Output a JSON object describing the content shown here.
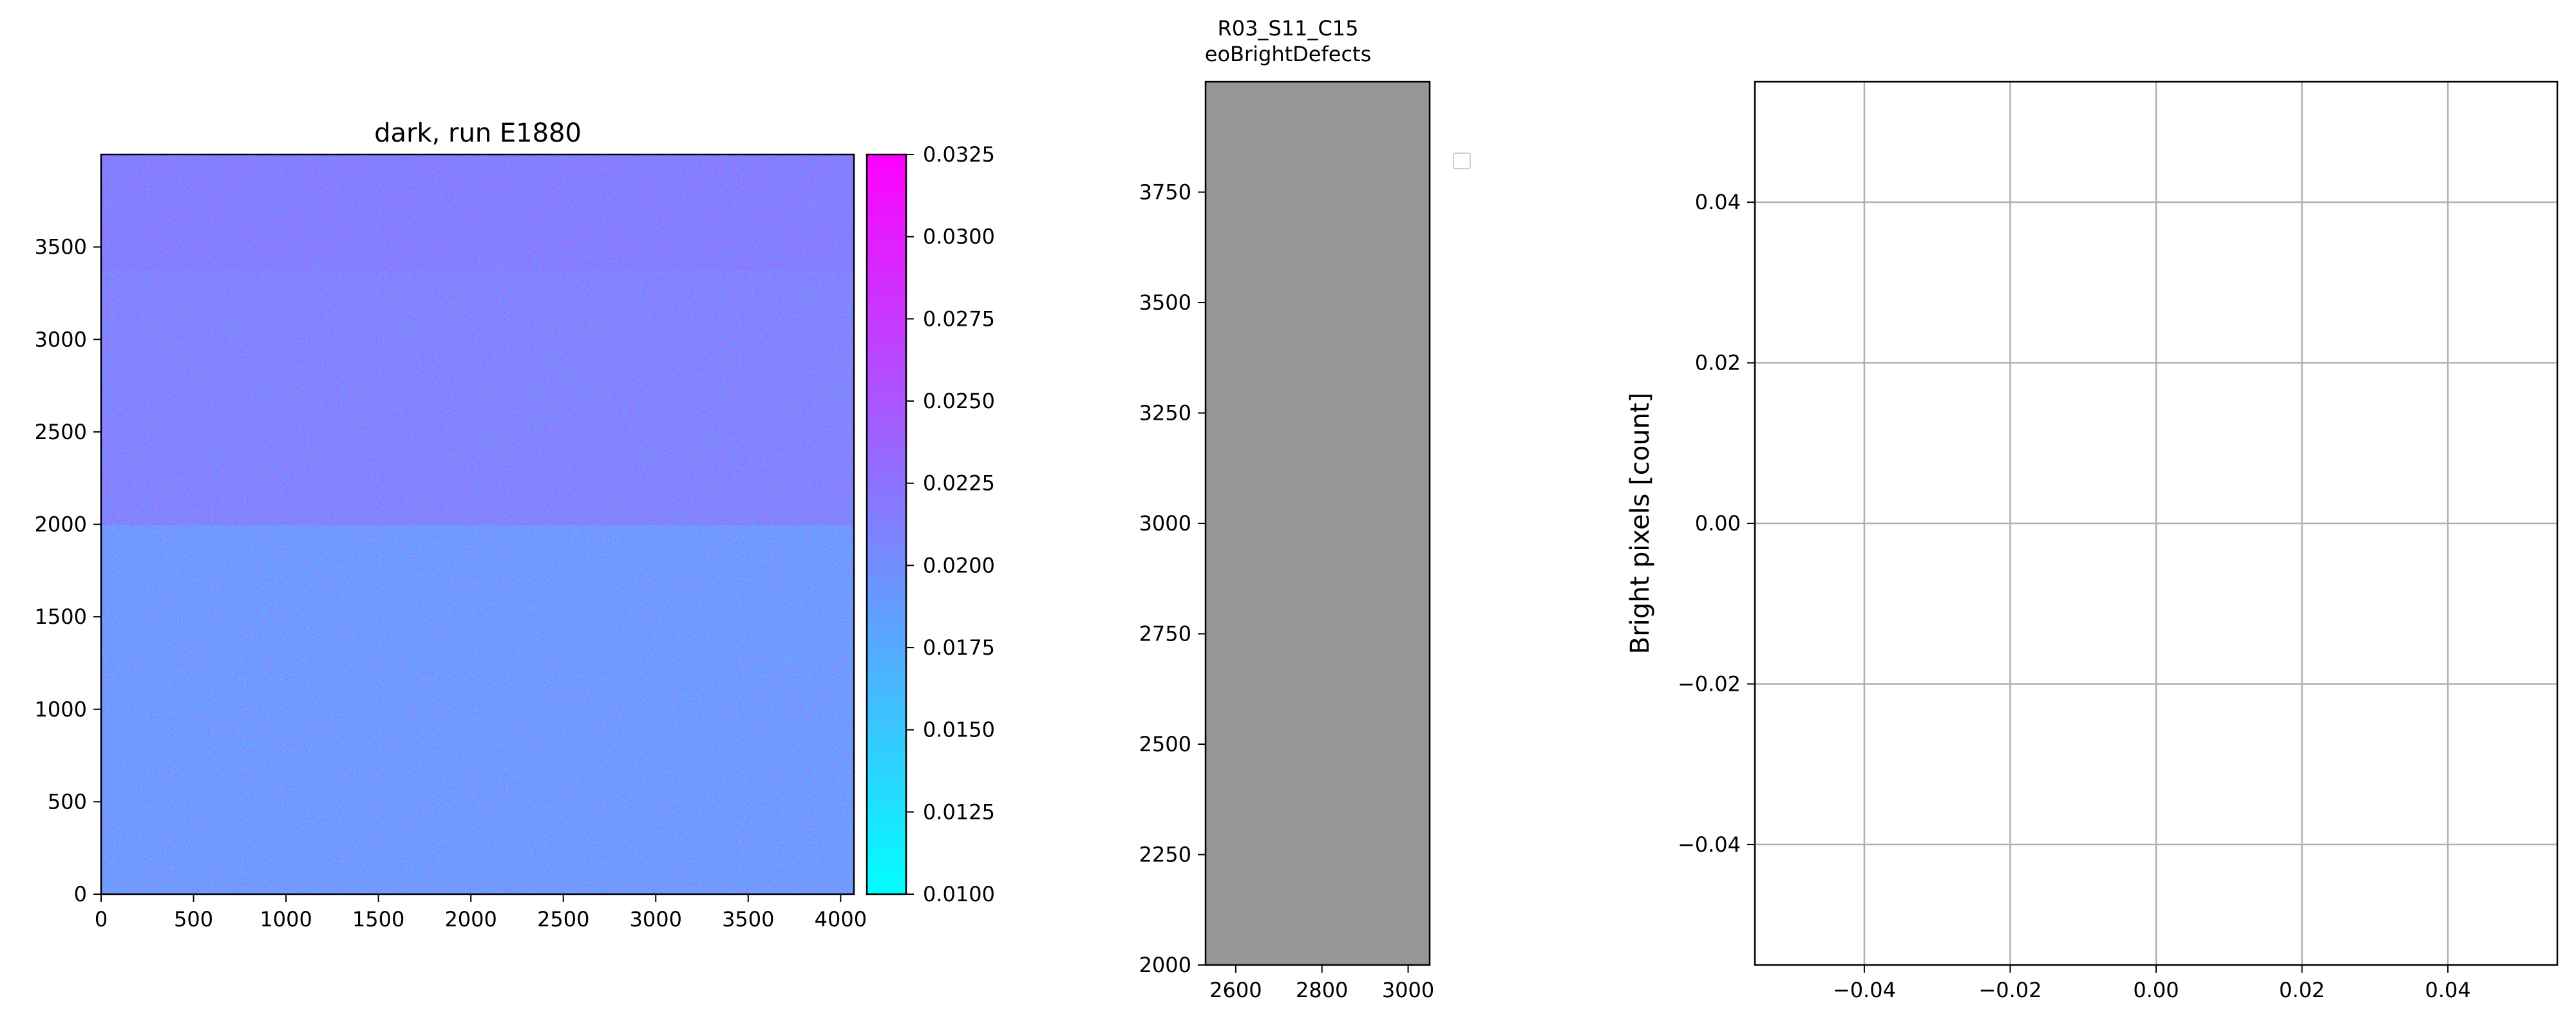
{
  "chart_data": [
    {
      "type": "heatmap",
      "title": "dark, run E1880",
      "xlabel": "",
      "ylabel": "",
      "xlim": [
        0,
        4072
      ],
      "ylim": [
        0,
        4000
      ],
      "x_ticks": [
        0,
        500,
        1000,
        1500,
        2000,
        2500,
        3000,
        3500,
        4000
      ],
      "y_ticks": [
        0,
        500,
        1000,
        1500,
        2000,
        2500,
        3000,
        3500
      ],
      "colormap": "cool",
      "colormap_colors": [
        "#00ffff",
        "#ff00ff"
      ],
      "colorbar": {
        "range": [
          0.01,
          0.0325
        ],
        "ticks": [
          "0.0100",
          "0.0125",
          "0.0150",
          "0.0175",
          "0.0200",
          "0.0225",
          "0.0250",
          "0.0275",
          "0.0300",
          "0.0325"
        ]
      },
      "value_summary": {
        "typical_lower_half": 0.018,
        "typical_upper_half": 0.021,
        "break_at_y": 2000
      }
    },
    {
      "type": "heatmap",
      "title": "R03_S11_C15\neoBrightDefects",
      "title_lines": [
        "R03_S11_C15",
        "eoBrightDefects"
      ],
      "xlim": [
        2530,
        3050
      ],
      "ylim": [
        2000,
        4000
      ],
      "x_ticks": [
        2600,
        2800,
        3000
      ],
      "y_ticks": [
        2000,
        2250,
        2500,
        2750,
        3000,
        3250,
        3500,
        3750
      ],
      "fill_color": "#969696",
      "legend": {
        "placement": "upper-right-outside",
        "entries": []
      }
    },
    {
      "type": "scatter",
      "title": "",
      "xlabel": "",
      "ylabel": "Bright pixels [count]",
      "xlim": [
        -0.055,
        0.055
      ],
      "ylim": [
        -0.055,
        0.055
      ],
      "x_ticks": [
        "−0.04",
        "−0.02",
        "0.00",
        "0.02",
        "0.04"
      ],
      "y_ticks": [
        "−0.04",
        "−0.02",
        "0.00",
        "0.02",
        "0.04"
      ],
      "x_tick_values": [
        -0.04,
        -0.02,
        0.0,
        0.02,
        0.04
      ],
      "y_tick_values": [
        -0.04,
        -0.02,
        0.0,
        0.02,
        0.04
      ],
      "grid": true,
      "series": []
    }
  ]
}
